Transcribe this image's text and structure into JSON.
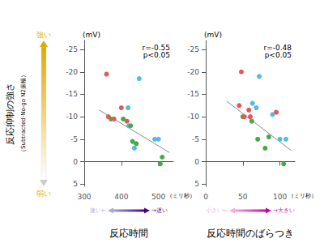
{
  "chart_data": [
    {
      "type": "scatter",
      "title": "反応時間",
      "annotation": "r=-0.55\np<0.05",
      "ylabel": "反応抑制の強さ",
      "ylabel_sub": "（Subtracted-No-go N2振幅）",
      "ylabel_top": "強い",
      "ylabel_bottom": "弱い",
      "ylabel_arrow_colors": [
        "#ffffff",
        "#ddaa00"
      ],
      "ylabel_unit": "(mV)",
      "xlabel_unit": "（ミリ秒）",
      "xlabel_left": "速い←",
      "xlabel_right": "→遅い",
      "arrow_colors": [
        "#aaaadd",
        "#440088"
      ],
      "xlim": [
        300,
        540
      ],
      "xticks": [
        300,
        400,
        500
      ],
      "ylim": [
        5.5,
        -27
      ],
      "yticks": [
        5,
        0,
        -5,
        -10,
        -15,
        -20,
        -25
      ],
      "grid": false,
      "series": [
        {
          "type": "scatter",
          "x": [
            365,
            372,
            380,
            360,
            400,
            405,
            415,
            420,
            418,
            425,
            430,
            435,
            440,
            448,
            490,
            500,
            505,
            510
          ],
          "values": [
            -10.0,
            -9.5,
            -9.5,
            -19.5,
            -12.0,
            -9.5,
            -9.0,
            -8.0,
            -12.0,
            -8.0,
            -4.5,
            -3.0,
            -4.0,
            -18.5,
            -5.0,
            -5.0,
            0.5,
            -1.0
          ],
          "colors": [
            "#e85555",
            "#44aa44",
            "#e85555",
            "#e85555",
            "#e85555",
            "#44aa44",
            "#e85555",
            "#55bbdd",
            "#55bbdd",
            "#44aa44",
            "#44aa44",
            "#55bbdd",
            "#44aa44",
            "#55bbdd",
            "#55bbdd",
            "#55bbdd",
            "#44aa44",
            "#44aa44"
          ]
        },
        {
          "type": "line",
          "x": [
            340,
            530
          ],
          "values": [
            -11.5,
            -2.0
          ],
          "color": "#888888"
        }
      ]
    },
    {
      "type": "scatter",
      "title": "反応時間のばらつき",
      "annotation": "r=-0.48\np<0.05",
      "ylabel_unit": "(mV)",
      "xlabel_unit": "（ミリ秒）",
      "xlabel_left": "小さい←",
      "xlabel_right": "→大きい",
      "arrow_colors": [
        "#ffaadd",
        "#cc00aa"
      ],
      "xlim": [
        0,
        120
      ],
      "xticks": [
        0,
        50,
        100
      ],
      "ylim": [
        5.5,
        -27
      ],
      "yticks": [
        5,
        0,
        -5,
        -10,
        -15,
        -20,
        -25
      ],
      "grid": false,
      "series": [
        {
          "type": "scatter",
          "x": [
            45,
            50,
            52,
            48,
            58,
            60,
            62,
            63,
            68,
            70,
            72,
            80,
            85,
            90,
            95,
            100,
            105,
            108
          ],
          "values": [
            -12.5,
            -10.0,
            -10.0,
            -20.0,
            -11.5,
            -10.0,
            -9.0,
            -13.0,
            -12.0,
            -5.0,
            -19.0,
            -3.0,
            -5.5,
            -10.5,
            -11.0,
            -5.0,
            0.5,
            -5.0
          ],
          "colors": [
            "#e85555",
            "#44aa44",
            "#e85555",
            "#e85555",
            "#e85555",
            "#e85555",
            "#44aa44",
            "#55bbdd",
            "#55bbdd",
            "#44aa44",
            "#55bbdd",
            "#44aa44",
            "#44aa44",
            "#55bbdd",
            "#e85555",
            "#55bbdd",
            "#44aa44",
            "#55bbdd"
          ]
        },
        {
          "type": "line",
          "x": [
            28,
            115
          ],
          "values": [
            -13.5,
            -2.5
          ],
          "color": "#888888"
        }
      ]
    }
  ]
}
